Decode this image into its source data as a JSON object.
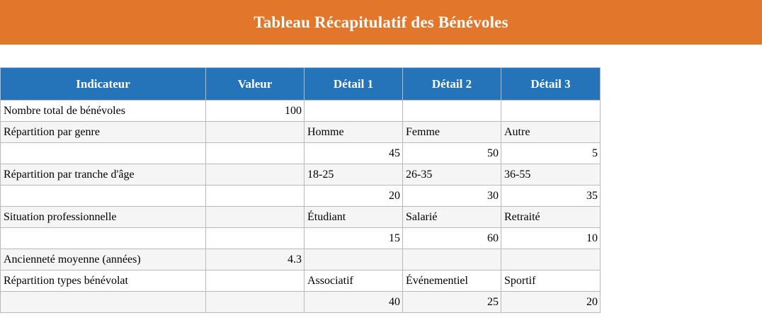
{
  "banner": {
    "title": "Tableau Récapitulatif des Bénévoles"
  },
  "colors": {
    "banner_bg": "#e2762b",
    "table_header_bg": "#2573b9",
    "row_stripe_bg": "#f5f5f5",
    "border": "#b9b9b9",
    "header_text": "#ffffff",
    "body_text": "#000000"
  },
  "table": {
    "columns": [
      "Indicateur",
      "Valeur",
      "Détail 1",
      "Détail 2",
      "Détail 3"
    ],
    "rows": [
      [
        "Nombre total de bénévoles",
        "100",
        "",
        "",
        ""
      ],
      [
        "Répartition par genre",
        "",
        "Homme",
        "Femme",
        "Autre"
      ],
      [
        "",
        "",
        "45",
        "50",
        "5"
      ],
      [
        "Répartition par tranche d'âge",
        "",
        "18-25",
        "26-35",
        "36-55"
      ],
      [
        "",
        "",
        "20",
        "30",
        "35"
      ],
      [
        "Situation professionnelle",
        "",
        "Étudiant",
        "Salarié",
        "Retraité"
      ],
      [
        "",
        "",
        "15",
        "60",
        "10"
      ],
      [
        "Ancienneté moyenne (années)",
        "4.3",
        "",
        "",
        ""
      ],
      [
        "Répartition types bénévolat",
        "",
        "Associatif",
        "Événementiel",
        "Sportif"
      ],
      [
        "",
        "",
        "40",
        "25",
        "20"
      ]
    ]
  }
}
